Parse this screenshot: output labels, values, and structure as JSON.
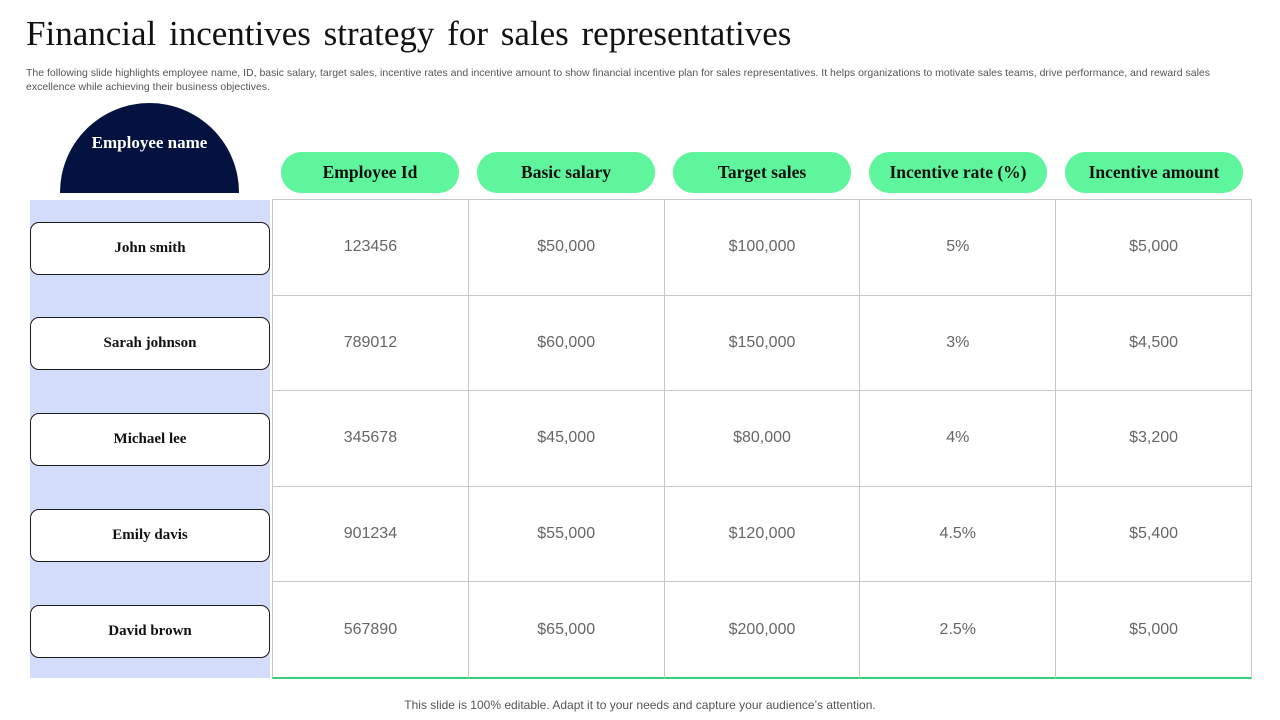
{
  "title": "Financial incentives strategy for sales representatives",
  "subtitle": "The following slide highlights employee name, ID, basic salary, target sales, incentive rates and incentive amount to show financial incentive plan for sales representatives. It helps organizations to motivate sales teams, drive performance, and reward sales excellence while achieving their business objectives.",
  "table": {
    "name_header": "Employee name",
    "columns": [
      "Employee Id",
      "Basic salary",
      "Target sales",
      "Incentive rate (%)",
      "Incentive amount"
    ],
    "rows": [
      {
        "name": "John  smith",
        "cells": [
          "123456",
          "$50,000",
          "$100,000",
          "5%",
          "$5,000"
        ]
      },
      {
        "name": "Sarah johnson",
        "cells": [
          "789012",
          "$60,000",
          "$150,000",
          "3%",
          "$4,500"
        ]
      },
      {
        "name": "Michael lee",
        "cells": [
          "345678",
          "$45,000",
          "$80,000",
          "4%",
          "$3,200"
        ]
      },
      {
        "name": "Emily  davis",
        "cells": [
          "901234",
          "$55,000",
          "$120,000",
          "4.5%",
          "$5,400"
        ]
      },
      {
        "name": "David brown",
        "cells": [
          "567890",
          "$65,000",
          "$200,000",
          "2.5%",
          "$5,000"
        ]
      }
    ]
  },
  "footer": "This slide is 100% editable. Adapt it to your needs and capture your audience’s attention.",
  "colors": {
    "name_header_bg": "#03123f",
    "column_header_bg": "#5ef59d",
    "name_panel_bg": "#d4dcfb",
    "table_bottom_border": "#35d07c"
  }
}
